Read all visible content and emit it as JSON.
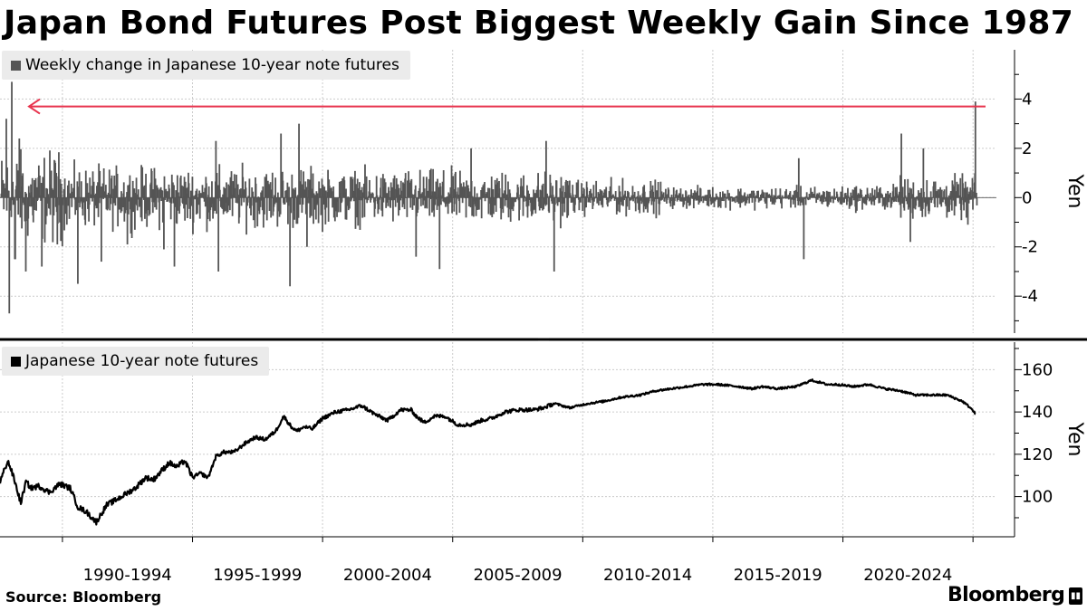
{
  "title": "Japan Bond Futures Post Biggest Weekly Gain Since 1987",
  "source": "Source: Bloomberg",
  "brand": "Bloomberg",
  "colors": {
    "bars": "#555555",
    "line": "#000000",
    "arrow": "#e8334d",
    "grid": "#cccccc",
    "legend_bg": "#ebebeb"
  },
  "chart_data": [
    {
      "type": "bar",
      "legend": "Weekly change in Japanese 10-year note futures",
      "ylabel": "Yen",
      "ylim": [
        -5.5,
        6
      ],
      "yticks": [
        -4,
        -2,
        0,
        2,
        4
      ],
      "xlim": [
        1987.6,
        2025.9
      ],
      "grid": true,
      "legend_position": "top-left",
      "highlight_level": 3.7,
      "spikes": [
        {
          "t": 1987.85,
          "v": 3.2
        },
        {
          "t": 1987.95,
          "v": -4.7
        },
        {
          "t": 1988.05,
          "v": 4.7
        },
        {
          "t": 1988.18,
          "v": -2.5
        },
        {
          "t": 1988.35,
          "v": 2.4
        },
        {
          "t": 1988.6,
          "v": -3.0
        },
        {
          "t": 1989.2,
          "v": -2.8
        },
        {
          "t": 1989.8,
          "v": -1.9
        },
        {
          "t": 1990.6,
          "v": -3.5
        },
        {
          "t": 1991.5,
          "v": -2.6
        },
        {
          "t": 1992.5,
          "v": -1.9
        },
        {
          "t": 1993.9,
          "v": -2.1
        },
        {
          "t": 1994.3,
          "v": -2.8
        },
        {
          "t": 1995.9,
          "v": 2.3
        },
        {
          "t": 1996.0,
          "v": -3.0
        },
        {
          "t": 1998.4,
          "v": 2.6
        },
        {
          "t": 1998.75,
          "v": -3.6
        },
        {
          "t": 1999.1,
          "v": 3.0
        },
        {
          "t": 1999.4,
          "v": -2.0
        },
        {
          "t": 2003.6,
          "v": -2.4
        },
        {
          "t": 2004.5,
          "v": -2.9
        },
        {
          "t": 2005.7,
          "v": 2.0
        },
        {
          "t": 2008.6,
          "v": 2.3
        },
        {
          "t": 2008.9,
          "v": -3.0
        },
        {
          "t": 2018.3,
          "v": 1.6
        },
        {
          "t": 2018.5,
          "v": -2.5
        },
        {
          "t": 2022.25,
          "v": 2.6
        },
        {
          "t": 2022.6,
          "v": -1.8
        },
        {
          "t": 2023.1,
          "v": 2.0
        },
        {
          "t": 2024.8,
          "v": -1.1
        },
        {
          "t": 2025.1,
          "v": 3.9
        }
      ]
    },
    {
      "type": "line",
      "legend": "Japanese 10-year note futures",
      "ylabel": "Yen",
      "ylim": [
        81,
        173
      ],
      "yticks": [
        100,
        120,
        140,
        160
      ],
      "xlim": [
        1987.6,
        2025.9
      ],
      "grid": true,
      "legend_position": "top-left",
      "x": [
        1987.6,
        1987.9,
        1988.1,
        1988.4,
        1988.6,
        1988.8,
        1989.1,
        1989.5,
        1989.9,
        1990.3,
        1990.6,
        1990.9,
        1991.3,
        1991.7,
        1992.0,
        1992.4,
        1992.8,
        1993.2,
        1993.5,
        1993.8,
        1994.1,
        1994.4,
        1994.7,
        1995.0,
        1995.3,
        1995.6,
        1995.9,
        1996.2,
        1996.6,
        1997.0,
        1997.4,
        1997.8,
        1998.2,
        1998.5,
        1998.8,
        1999.0,
        1999.3,
        1999.6,
        2000.0,
        2000.5,
        2001.0,
        2001.5,
        2002.0,
        2002.5,
        2003.0,
        2003.4,
        2003.6,
        2003.9,
        2004.3,
        2004.7,
        2005.2,
        2005.7,
        2006.1,
        2006.5,
        2007.0,
        2007.5,
        2008.1,
        2008.5,
        2008.9,
        2009.5,
        2010.2,
        2010.8,
        2011.5,
        2012.2,
        2012.8,
        2013.4,
        2014.0,
        2014.6,
        2015.2,
        2016.0,
        2016.5,
        2016.9,
        2017.5,
        2018.2,
        2018.8,
        2019.4,
        2019.8,
        2020.4,
        2021.0,
        2021.6,
        2022.2,
        2022.8,
        2023.4,
        2024.0,
        2024.6,
        2024.9,
        2025.1
      ],
      "values": [
        107,
        117,
        110,
        97,
        107,
        104,
        105,
        102,
        106,
        104,
        95,
        93,
        88,
        96,
        98,
        101,
        104,
        109,
        108,
        112,
        116,
        114,
        117,
        109,
        111,
        109,
        119,
        121,
        121,
        125,
        128,
        127,
        131,
        138,
        133,
        131,
        133,
        132,
        137,
        140,
        141,
        143,
        139,
        136,
        141,
        141,
        138,
        135,
        138,
        138,
        134,
        134,
        136,
        137,
        140,
        141,
        141,
        142,
        144,
        142,
        144,
        145,
        147,
        148,
        150,
        151,
        152,
        153,
        153,
        152,
        151,
        152,
        151,
        152,
        155,
        153,
        153,
        152,
        153,
        151,
        150,
        148,
        148,
        148,
        145,
        142,
        139
      ]
    }
  ],
  "x_axis": {
    "tick_labels": [
      "1990-1994",
      "1995-1999",
      "2000-2004",
      "2005-2009",
      "2010-2014",
      "2015-2019",
      "2020-2024"
    ],
    "tick_centers": [
      1992.5,
      1997.5,
      2002.5,
      2007.5,
      2012.5,
      2017.5,
      2022.5
    ],
    "gridlines": [
      1990,
      1995,
      2000,
      2005,
      2010,
      2015,
      2020,
      2025
    ]
  }
}
